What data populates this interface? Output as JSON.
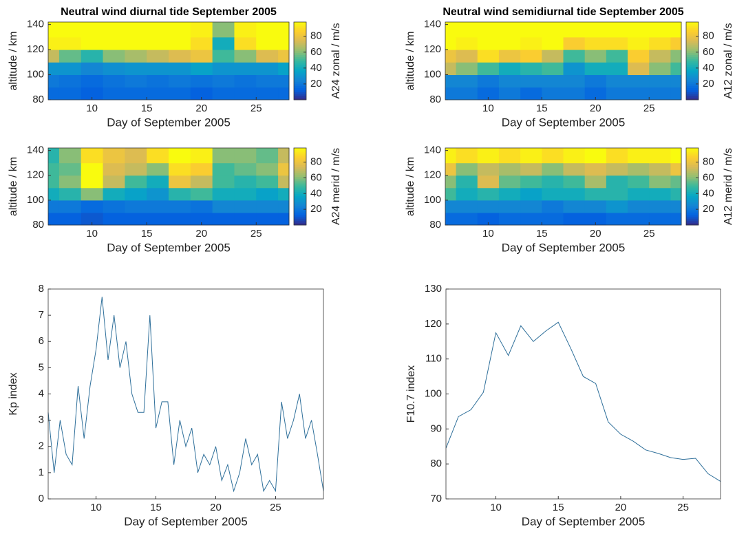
{
  "chart_data": [
    {
      "type": "heatmap",
      "title": "Neutral wind diurnal tide September 2005",
      "xlabel": "Day of September 2005",
      "ylabel": "altitude / km",
      "colorbar_label": "A24 zonal / m/s",
      "x": [
        6,
        8,
        10,
        12,
        14,
        16,
        18,
        20,
        22,
        24,
        26,
        28
      ],
      "y": [
        85,
        95,
        105,
        115,
        125,
        135
      ],
      "z": [
        [
          15,
          15,
          12,
          15,
          15,
          15,
          15,
          12,
          15,
          15,
          15,
          15
        ],
        [
          20,
          18,
          15,
          18,
          20,
          18,
          20,
          18,
          20,
          18,
          20,
          20
        ],
        [
          30,
          30,
          25,
          28,
          30,
          30,
          30,
          35,
          30,
          30,
          30,
          35
        ],
        [
          70,
          55,
          45,
          60,
          65,
          70,
          75,
          80,
          50,
          60,
          75,
          80
        ],
        [
          95,
          95,
          98,
          98,
          98,
          98,
          98,
          90,
          40,
          90,
          98,
          98
        ],
        [
          98,
          98,
          98,
          98,
          98,
          98,
          98,
          95,
          60,
          95,
          98,
          98
        ]
      ],
      "xlim": [
        6,
        28
      ],
      "xticks": [
        10,
        15,
        20,
        25
      ],
      "ylim": [
        80,
        142
      ],
      "yticks": [
        80,
        100,
        120,
        140
      ],
      "clim": [
        0,
        98
      ],
      "cticks": [
        20,
        40,
        60,
        80
      ]
    },
    {
      "type": "heatmap",
      "title": "Neutral wind semidiurnal tide September 2005",
      "xlabel": "Day of September 2005",
      "ylabel": "altitude / km",
      "colorbar_label": "A12 zonal / m/s",
      "x": [
        6,
        8,
        10,
        12,
        14,
        16,
        18,
        20,
        22,
        24,
        26,
        28
      ],
      "y": [
        85,
        95,
        105,
        115,
        125,
        135
      ],
      "z": [
        [
          20,
          20,
          15,
          20,
          15,
          20,
          20,
          15,
          20,
          20,
          20,
          20
        ],
        [
          25,
          25,
          20,
          25,
          25,
          25,
          25,
          20,
          25,
          25,
          25,
          25
        ],
        [
          70,
          60,
          50,
          40,
          45,
          50,
          30,
          40,
          40,
          75,
          60,
          50
        ],
        [
          80,
          75,
          90,
          80,
          85,
          70,
          50,
          60,
          50,
          85,
          70,
          60
        ],
        [
          98,
          95,
          98,
          98,
          95,
          98,
          85,
          90,
          90,
          95,
          90,
          85
        ],
        [
          98,
          98,
          98,
          98,
          98,
          98,
          98,
          98,
          98,
          98,
          98,
          98
        ]
      ],
      "xlim": [
        6,
        28
      ],
      "xticks": [
        10,
        15,
        20,
        25
      ],
      "ylim": [
        80,
        142
      ],
      "yticks": [
        80,
        100,
        120,
        140
      ],
      "clim": [
        0,
        98
      ],
      "cticks": [
        20,
        40,
        60,
        80
      ]
    },
    {
      "type": "heatmap",
      "xlabel": "Day of September 2005",
      "ylabel": "altitude / km",
      "colorbar_label": "A24 merid / m/s",
      "x": [
        6,
        8,
        10,
        12,
        14,
        16,
        18,
        20,
        22,
        24,
        26,
        28
      ],
      "y": [
        85,
        95,
        105,
        115,
        125,
        135
      ],
      "z": [
        [
          12,
          12,
          10,
          12,
          12,
          12,
          12,
          12,
          12,
          12,
          12,
          12
        ],
        [
          20,
          20,
          15,
          18,
          20,
          20,
          20,
          18,
          25,
          25,
          25,
          25
        ],
        [
          40,
          45,
          60,
          40,
          35,
          30,
          45,
          50,
          40,
          40,
          35,
          40
        ],
        [
          50,
          60,
          98,
          70,
          50,
          40,
          80,
          70,
          50,
          45,
          50,
          70
        ],
        [
          50,
          55,
          98,
          75,
          70,
          60,
          90,
          85,
          50,
          55,
          60,
          80
        ],
        [
          45,
          60,
          90,
          80,
          75,
          90,
          98,
          95,
          60,
          60,
          55,
          70
        ]
      ],
      "xlim": [
        6,
        28
      ],
      "xticks": [
        10,
        15,
        20,
        25
      ],
      "ylim": [
        80,
        142
      ],
      "yticks": [
        80,
        100,
        120,
        140
      ],
      "clim": [
        0,
        98
      ],
      "cticks": [
        20,
        40,
        60,
        80
      ]
    },
    {
      "type": "heatmap",
      "xlabel": "Day of September 2005",
      "ylabel": "altitude / km",
      "colorbar_label": "A12 merid / m/s",
      "x": [
        6,
        8,
        10,
        12,
        14,
        16,
        18,
        20,
        22,
        24,
        26,
        28
      ],
      "y": [
        85,
        95,
        105,
        115,
        125,
        135
      ],
      "z": [
        [
          15,
          15,
          12,
          15,
          15,
          15,
          12,
          12,
          15,
          15,
          15,
          15
        ],
        [
          25,
          25,
          25,
          25,
          25,
          20,
          25,
          25,
          30,
          25,
          25,
          25
        ],
        [
          50,
          40,
          45,
          40,
          35,
          40,
          40,
          45,
          45,
          40,
          40,
          45
        ],
        [
          60,
          45,
          75,
          55,
          50,
          45,
          50,
          65,
          45,
          50,
          60,
          55
        ],
        [
          80,
          60,
          70,
          65,
          70,
          60,
          70,
          75,
          70,
          65,
          70,
          80
        ],
        [
          95,
          90,
          95,
          90,
          95,
          90,
          95,
          98,
          90,
          95,
          95,
          98
        ]
      ],
      "xlim": [
        6,
        28
      ],
      "xticks": [
        10,
        15,
        20,
        25
      ],
      "ylim": [
        80,
        142
      ],
      "yticks": [
        80,
        100,
        120,
        140
      ],
      "clim": [
        0,
        98
      ],
      "cticks": [
        20,
        40,
        60,
        80
      ]
    },
    {
      "type": "line",
      "xlabel": "Day of September 2005",
      "ylabel": "Kp index",
      "color": "#2e6f9a",
      "x": [
        6,
        6.5,
        7,
        7.5,
        8,
        8.5,
        9,
        9.5,
        10,
        10.5,
        11,
        11.5,
        12,
        12.5,
        13,
        13.5,
        14,
        14.5,
        15,
        15.5,
        16,
        16.5,
        17,
        17.5,
        18,
        18.5,
        19,
        19.5,
        20,
        20.5,
        21,
        21.5,
        22,
        22.5,
        23,
        23.5,
        24,
        24.5,
        25,
        25.5,
        26,
        26.5,
        27,
        27.5,
        28,
        28.5,
        29
      ],
      "values": [
        3.3,
        1.0,
        3.0,
        1.7,
        1.3,
        4.3,
        2.3,
        4.3,
        5.7,
        7.7,
        5.3,
        7.0,
        5.0,
        6.0,
        4.0,
        3.3,
        3.3,
        7.0,
        2.7,
        3.7,
        3.7,
        1.3,
        3.0,
        2.0,
        2.7,
        1.0,
        1.7,
        1.3,
        2.0,
        0.7,
        1.3,
        0.3,
        1.0,
        2.3,
        1.3,
        1.7,
        0.3,
        0.7,
        0.3,
        3.7,
        2.3,
        3.0,
        4.0,
        2.3,
        3.0,
        1.7,
        0.3
      ],
      "xlim": [
        6,
        29
      ],
      "xticks": [
        10,
        15,
        20,
        25
      ],
      "ylim": [
        0,
        8
      ],
      "yticks": [
        0,
        1,
        2,
        3,
        4,
        5,
        6,
        7,
        8
      ]
    },
    {
      "type": "line",
      "xlabel": "Day of September 2005",
      "ylabel": "F10.7 index",
      "color": "#2e6f9a",
      "x": [
        6,
        7,
        8,
        9,
        10,
        11,
        12,
        13,
        14,
        15,
        16,
        17,
        18,
        19,
        20,
        21,
        22,
        23,
        24,
        25,
        26,
        27,
        28
      ],
      "values": [
        84.5,
        93.5,
        95.5,
        100.5,
        117.5,
        111,
        119.5,
        115,
        118,
        120.5,
        113,
        105,
        103,
        92,
        88.5,
        86.5,
        84,
        83,
        81.8,
        81.3,
        81.6,
        77.2,
        75
      ],
      "xlim": [
        6,
        28
      ],
      "xticks": [
        10,
        15,
        20,
        25
      ],
      "ylim": [
        70,
        130
      ],
      "yticks": [
        70,
        80,
        90,
        100,
        110,
        120,
        130
      ]
    }
  ]
}
